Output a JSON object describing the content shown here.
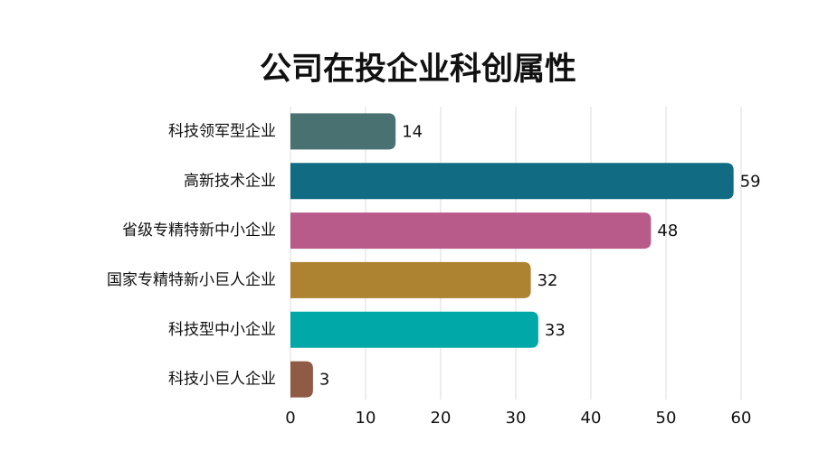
{
  "chart_data": {
    "type": "barh",
    "title": "公司在投企业科创属性",
    "categories": [
      "科技领军型企业",
      "高新技术企业",
      "省级专精特新中小企业",
      "国家专精特新小巨人企业",
      "科技型中小企业",
      "科技小巨人企业"
    ],
    "values": [
      14,
      59,
      48,
      32,
      33,
      3
    ],
    "colors": [
      "#4a7171",
      "#116b82",
      "#b85b8b",
      "#ad8230",
      "#00a9a8",
      "#8f5b45"
    ],
    "xlim": [
      0,
      60
    ],
    "xticks": [
      0,
      10,
      20,
      30,
      40,
      50,
      60
    ],
    "grid": true
  }
}
